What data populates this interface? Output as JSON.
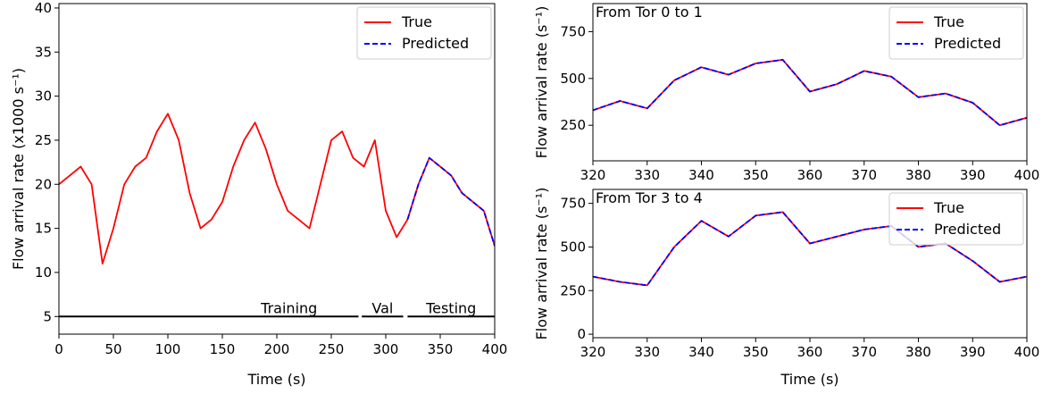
{
  "chart_data": [
    {
      "type": "line",
      "xlabel": "Time (s)",
      "ylabel": "Flow arrival rate (x1000 s⁻¹)",
      "xlim": [
        0,
        400
      ],
      "ylim": [
        3,
        40.5
      ],
      "xticks": [
        0,
        50,
        100,
        150,
        200,
        250,
        300,
        350,
        400
      ],
      "yticks": [
        5,
        10,
        15,
        20,
        25,
        30,
        35,
        40
      ],
      "legend": {
        "position": "top-right",
        "entries": [
          "True",
          "Predicted"
        ]
      },
      "split_line_y": 5,
      "segments": [
        {
          "label": "Training",
          "x_start": 0,
          "x_end": 275
        },
        {
          "label": "Val",
          "x_start": 278,
          "x_end": 316
        },
        {
          "label": "Testing",
          "x_start": 320,
          "x_end": 400
        }
      ],
      "series": [
        {
          "name": "True",
          "color": "#ff0000",
          "style": "solid",
          "x": [
            0,
            10,
            20,
            30,
            40,
            50,
            60,
            70,
            80,
            90,
            100,
            110,
            120,
            130,
            140,
            150,
            160,
            170,
            180,
            190,
            200,
            210,
            220,
            230,
            240,
            250,
            260,
            270,
            280,
            290,
            300,
            310,
            320,
            330,
            340,
            350,
            360,
            370,
            380,
            390,
            400
          ],
          "values": [
            20,
            21,
            22,
            20,
            11,
            15,
            20,
            22,
            23,
            26,
            28,
            25,
            19,
            15,
            16,
            18,
            22,
            25,
            27,
            24,
            20,
            17,
            16,
            15,
            20,
            25,
            26,
            23,
            22,
            25,
            17,
            14,
            16,
            20,
            23,
            22,
            21,
            19,
            18,
            17,
            13
          ]
        },
        {
          "name": "Predicted",
          "color": "#0000ff",
          "style": "dashed",
          "x": [
            320,
            330,
            340,
            350,
            360,
            370,
            380,
            390,
            400
          ],
          "values": [
            16,
            20,
            23,
            22,
            21,
            19,
            18,
            17,
            13
          ]
        }
      ]
    },
    {
      "type": "line",
      "annotation": "From Tor 0 to 1",
      "xlabel": "",
      "ylabel": "Flow arrival rate (s⁻¹)",
      "xlim": [
        320,
        400
      ],
      "ylim": [
        60,
        900
      ],
      "xticks": [
        320,
        330,
        340,
        350,
        360,
        370,
        380,
        390,
        400
      ],
      "yticks": [
        250,
        500,
        750
      ],
      "legend": {
        "position": "top-right",
        "entries": [
          "True",
          "Predicted"
        ]
      },
      "series": [
        {
          "name": "True",
          "color": "#ff0000",
          "style": "solid",
          "x": [
            320,
            325,
            330,
            335,
            340,
            345,
            350,
            355,
            360,
            365,
            370,
            375,
            380,
            385,
            390,
            395,
            400
          ],
          "values": [
            330,
            380,
            340,
            490,
            560,
            520,
            580,
            600,
            430,
            470,
            540,
            510,
            400,
            420,
            370,
            250,
            290
          ]
        },
        {
          "name": "Predicted",
          "color": "#0000ff",
          "style": "dashed",
          "x": [
            320,
            325,
            330,
            335,
            340,
            345,
            350,
            355,
            360,
            365,
            370,
            375,
            380,
            385,
            390,
            395,
            400
          ],
          "values": [
            330,
            380,
            340,
            490,
            560,
            520,
            580,
            600,
            430,
            470,
            540,
            510,
            400,
            420,
            370,
            250,
            290
          ]
        }
      ]
    },
    {
      "type": "line",
      "annotation": "From Tor 3 to 4",
      "xlabel": "Time (s)",
      "ylabel": "Flow arrival rate (s⁻¹)",
      "xlim": [
        320,
        400
      ],
      "ylim": [
        -20,
        830
      ],
      "xticks": [
        320,
        330,
        340,
        350,
        360,
        370,
        380,
        390,
        400
      ],
      "yticks": [
        0,
        250,
        500,
        750
      ],
      "legend": {
        "position": "top-right",
        "entries": [
          "True",
          "Predicted"
        ]
      },
      "series": [
        {
          "name": "True",
          "color": "#ff0000",
          "style": "solid",
          "x": [
            320,
            325,
            330,
            335,
            340,
            345,
            350,
            355,
            360,
            365,
            370,
            375,
            380,
            385,
            390,
            395,
            400
          ],
          "values": [
            330,
            300,
            280,
            500,
            650,
            560,
            680,
            700,
            520,
            560,
            600,
            620,
            500,
            520,
            420,
            300,
            330
          ]
        },
        {
          "name": "Predicted",
          "color": "#0000ff",
          "style": "dashed",
          "x": [
            320,
            325,
            330,
            335,
            340,
            345,
            350,
            355,
            360,
            365,
            370,
            375,
            380,
            385,
            390,
            395,
            400
          ],
          "values": [
            330,
            300,
            280,
            500,
            650,
            560,
            680,
            700,
            520,
            560,
            600,
            620,
            500,
            520,
            420,
            300,
            330
          ]
        }
      ]
    }
  ]
}
